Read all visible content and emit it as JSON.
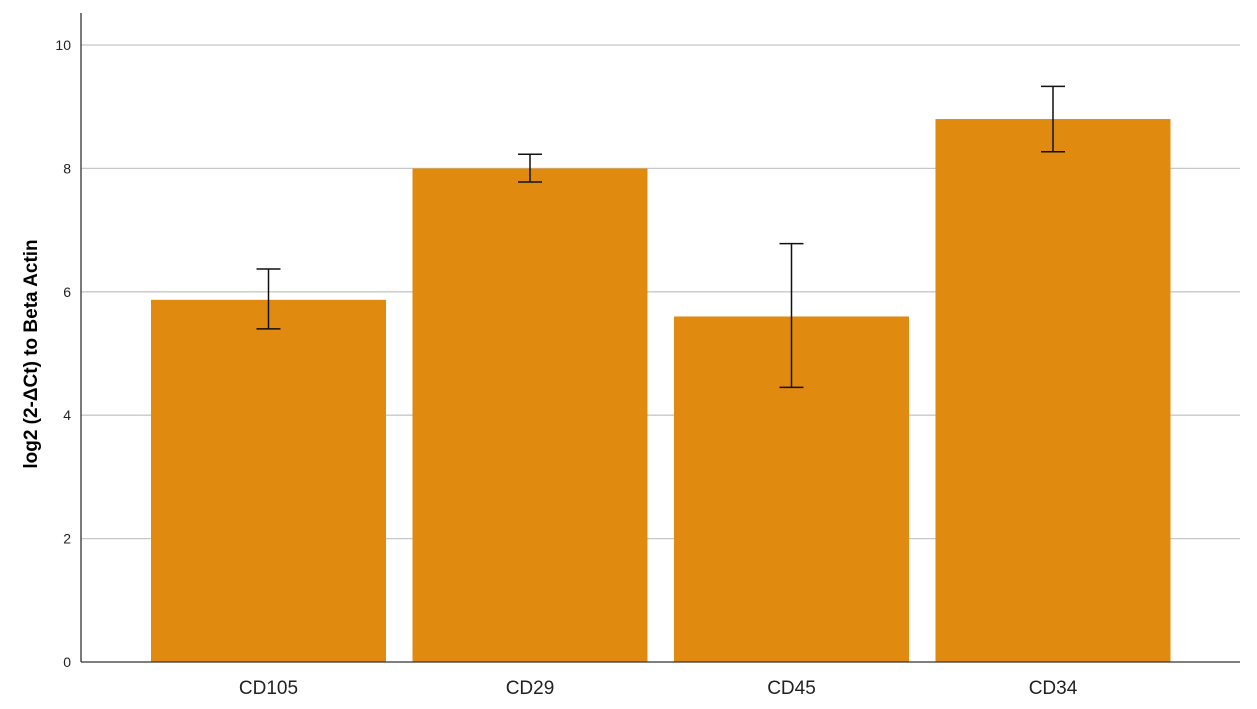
{
  "chart_data": {
    "type": "bar",
    "title": "",
    "xlabel": "",
    "ylabel": "log2 (2-ΔCt) to Beta Actin",
    "categories": [
      "CD105",
      "CD29",
      "CD45",
      "CD34"
    ],
    "values": [
      5.87,
      8.0,
      5.6,
      8.8
    ],
    "error_bars": [
      {
        "low": 5.4,
        "high": 6.37
      },
      {
        "low": 7.78,
        "high": 8.23
      },
      {
        "low": 4.45,
        "high": 6.78
      },
      {
        "low": 8.27,
        "high": 9.33
      }
    ],
    "ylim": [
      0,
      10.5
    ],
    "yticks": [
      0,
      2,
      4,
      6,
      8,
      10
    ],
    "ytick_labels": [
      "0",
      "2",
      "4",
      "6",
      "8",
      "10"
    ],
    "grid": true,
    "bar_color": "#e08a10",
    "grid_color": "#c8c8c8",
    "axis_color": "#333333"
  }
}
